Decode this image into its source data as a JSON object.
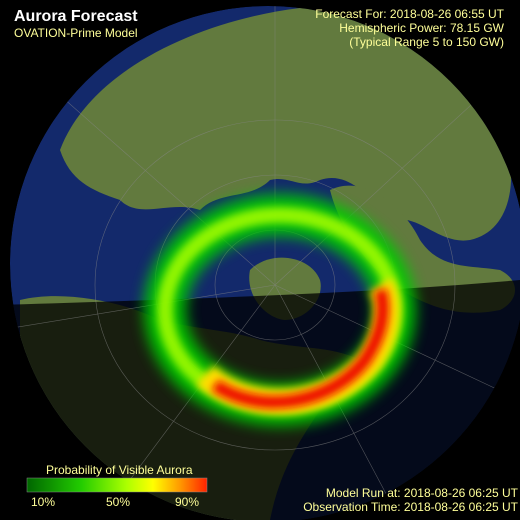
{
  "header": {
    "title": "Aurora Forecast",
    "subtitle": "OVATION-Prime Model"
  },
  "info": {
    "forecast_for": "Forecast For: 2018-08-26 06:55 UT",
    "hemispheric_power": "Hemispheric Power: 78.15 GW",
    "typical_range": "(Typical Range 5 to 150 GW)"
  },
  "legend": {
    "title": "Probability of Visible Aurora",
    "labels": [
      "10%",
      "50%",
      "90%"
    ]
  },
  "footer": {
    "model_run": "Model Run at: 2018-08-26 06:25 UT",
    "observation_time": "Observation Time: 2018-08-26 06:25 UT"
  }
}
